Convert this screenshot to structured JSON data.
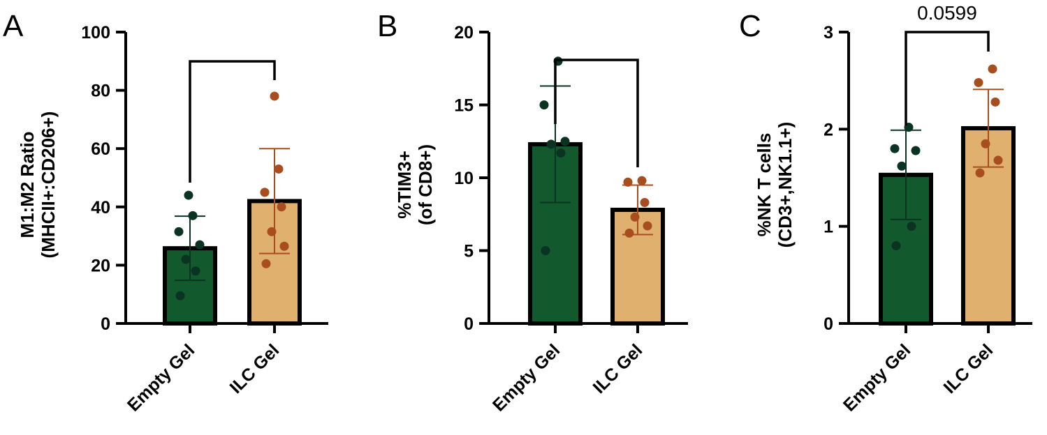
{
  "chart_data": [
    {
      "type": "bar",
      "panel": "A",
      "categories": [
        "Empty Gel",
        "ILC Gel"
      ],
      "ylabel_lines": [
        "M1:M2 Ratio",
        "(MHCII+:CD206+)"
      ],
      "ylim": [
        0,
        100
      ],
      "yticks": [
        0,
        20,
        40,
        60,
        80,
        100
      ],
      "series": [
        {
          "values": [
            25.8,
            42.0
          ],
          "error_sd": [
            11.0,
            18.0
          ],
          "points": [
            [
              9.5,
              18.0,
              22.0,
              27.0,
              31.5,
              37.0,
              44.0
            ],
            [
              20.5,
              26.5,
              31.5,
              40.0,
              45.0,
              53.0,
              78.0
            ]
          ]
        }
      ],
      "significance": {
        "text": "",
        "from": 0,
        "to": 1
      },
      "colors": {
        "bar_0": "#125a2d",
        "bar_1": "#e0b06e",
        "point_0": "#0b3321",
        "point_1": "#a84d1e",
        "error_0": "#0b3321",
        "error_1": "#a84d1e"
      },
      "grid": false,
      "legend": "none"
    },
    {
      "type": "bar",
      "panel": "B",
      "categories": [
        "Empty Gel",
        "ILC Gel"
      ],
      "ylabel_lines": [
        "%TIM3+",
        "(of CD8+)"
      ],
      "ylim": [
        0,
        20
      ],
      "yticks": [
        0,
        5,
        10,
        15,
        20
      ],
      "series": [
        {
          "values": [
            12.3,
            7.8
          ],
          "error_sd": [
            4.0,
            1.7
          ],
          "points": [
            [
              5.0,
              11.7,
              12.3,
              12.5,
              15.0,
              18.0
            ],
            [
              6.2,
              6.7,
              7.3,
              8.3,
              9.7,
              9.8
            ]
          ]
        }
      ],
      "significance": {
        "text": "",
        "from": 0,
        "to": 1
      },
      "colors": {
        "bar_0": "#125a2d",
        "bar_1": "#e0b06e",
        "point_0": "#0b3321",
        "point_1": "#a84d1e",
        "error_0": "#0b3321",
        "error_1": "#a84d1e"
      },
      "grid": false,
      "legend": "none"
    },
    {
      "type": "bar",
      "panel": "C",
      "categories": [
        "Empty Gel",
        "ILC Gel"
      ],
      "ylabel_lines": [
        "%NK T cells",
        "(CD3+,NK1.1+)"
      ],
      "ylim": [
        0,
        3
      ],
      "yticks": [
        0,
        1,
        2,
        3
      ],
      "series": [
        {
          "values": [
            1.53,
            2.01
          ],
          "error_sd": [
            0.46,
            0.4
          ],
          "points": [
            [
              0.8,
              1.0,
              1.62,
              1.78,
              1.8,
              2.02
            ],
            [
              1.55,
              1.68,
              1.85,
              2.28,
              2.48,
              2.62
            ]
          ]
        }
      ],
      "significance": {
        "text": "0.0599",
        "from": 0,
        "to": 1
      },
      "colors": {
        "bar_0": "#125a2d",
        "bar_1": "#e0b06e",
        "point_0": "#0b3321",
        "point_1": "#a84d1e",
        "error_0": "#0b3321",
        "error_1": "#a84d1e"
      },
      "grid": false,
      "legend": "none"
    }
  ]
}
